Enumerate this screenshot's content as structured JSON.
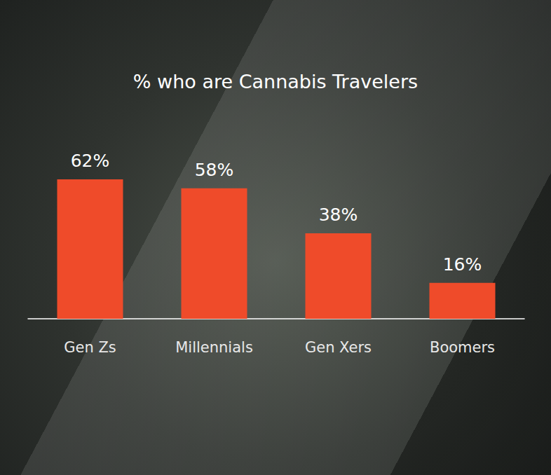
{
  "chart_data": {
    "type": "bar",
    "title": "% who are Cannabis Travelers",
    "categories": [
      "Gen Zs",
      "Millennials",
      "Gen Xers",
      "Boomers"
    ],
    "values": [
      62,
      58,
      38,
      16
    ],
    "value_labels": [
      "62%",
      "58%",
      "38%",
      "16%"
    ],
    "color": "#ef4b2a",
    "ylim": [
      0,
      62
    ],
    "grid": false,
    "data_labels": true,
    "tick_labels": "x"
  }
}
